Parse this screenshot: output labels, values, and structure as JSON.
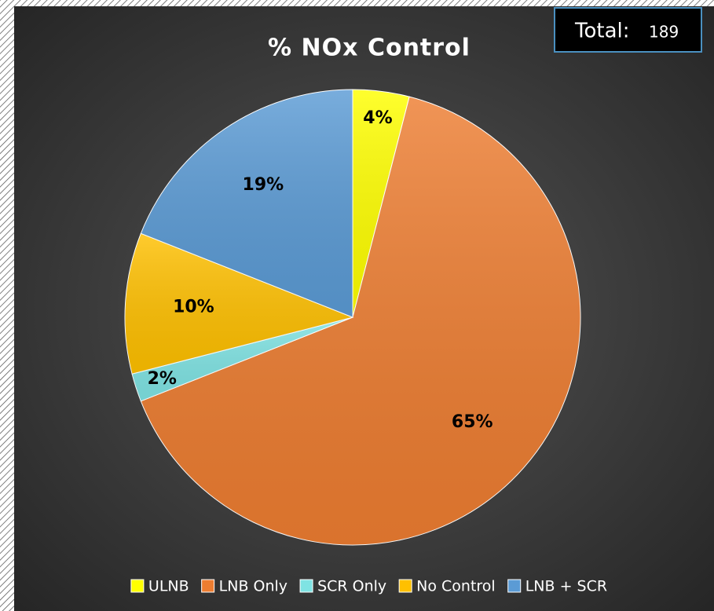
{
  "chart_data": {
    "type": "pie",
    "title": "% NOx Control",
    "total_label": "Total:",
    "total": 189,
    "categories": [
      "ULNB",
      "LNB Only",
      "SCR Only",
      "No Control",
      "LNB + SCR"
    ],
    "values": [
      4,
      65,
      2,
      10,
      19
    ],
    "value_labels": [
      "4%",
      "65%",
      "2%",
      "10%",
      "19%"
    ],
    "colors": [
      "#ffff00",
      "#ed7d31",
      "#7fe3e3",
      "#ffc000",
      "#5b9bd5"
    ],
    "legend": "bottom"
  }
}
